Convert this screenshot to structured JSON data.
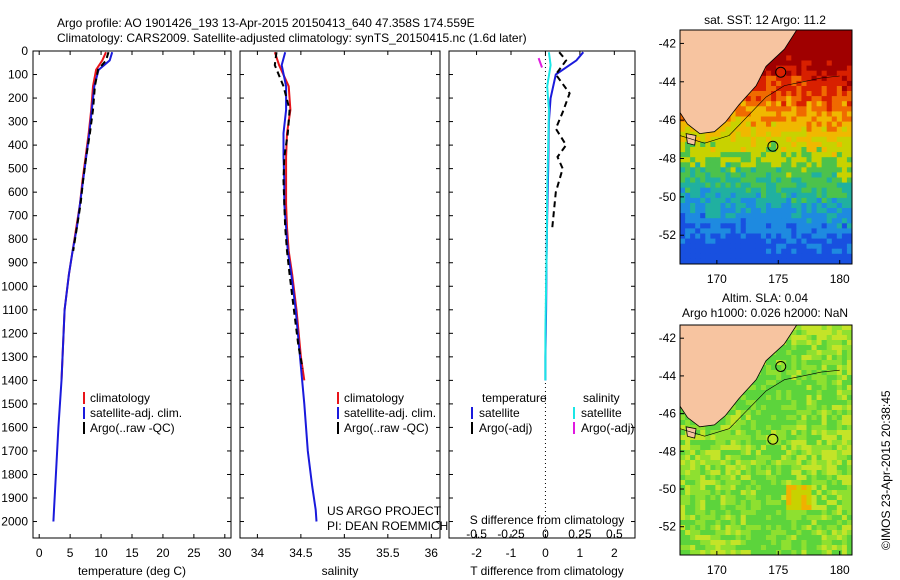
{
  "header": {
    "line1": "Argo profile: AO 1901426_193 13-Apr-2015 20150413_640 47.358S 174.559E",
    "line2": "Climatology: CARS2009. Satellite-adjusted climatology: synTS_20150415.nc (1.6d later)"
  },
  "credit": "©IMOS 23-Apr-2015 20:38:45",
  "colors": {
    "climatology": "#e8141a",
    "satellite": "#1a1adc",
    "argo": "#000000",
    "sat_salinity": "#1ae6e6",
    "argo_salinity": "#e01ae0",
    "land": "#f7c4a0"
  },
  "chart_data": [
    {
      "type": "line",
      "panel": "temperature",
      "xlabel": "temperature (deg C)",
      "xlim": [
        -1,
        31
      ],
      "xticks": [
        0,
        5,
        10,
        15,
        20,
        25,
        30
      ],
      "ylim": [
        0,
        2070
      ],
      "yticks": [
        0,
        100,
        200,
        300,
        400,
        500,
        600,
        700,
        800,
        900,
        1000,
        1100,
        1200,
        1300,
        1400,
        1500,
        1600,
        1700,
        1800,
        1900,
        2000
      ],
      "legend": [
        "climatology",
        "satellite-adj. clim.",
        "Argo(..raw -QC)"
      ],
      "series": [
        {
          "name": "climatology",
          "color": "climatology",
          "x": [
            10.8,
            10.2,
            9.2,
            8.7,
            8.4,
            8.0,
            7.5,
            7.0,
            6.6,
            6.0,
            5.4,
            4.8,
            4.1,
            3.6
          ],
          "y": [
            5,
            40,
            80,
            150,
            250,
            350,
            450,
            550,
            650,
            750,
            850,
            950,
            1100,
            1400
          ]
        },
        {
          "name": "satellite-adj. clim.",
          "color": "satellite",
          "x": [
            11.8,
            11.4,
            9.6,
            8.9,
            8.5,
            8.1,
            7.6,
            7.1,
            6.6,
            6.1,
            5.4,
            4.8,
            4.1,
            3.6,
            3.1,
            2.7,
            2.4,
            2.3
          ],
          "y": [
            5,
            40,
            80,
            150,
            250,
            350,
            450,
            550,
            650,
            750,
            850,
            950,
            1100,
            1400,
            1600,
            1800,
            1950,
            2000
          ]
        },
        {
          "name": "Argo(..raw -QC)",
          "color": "argo",
          "dashed": true,
          "x": [
            11.2,
            10.8,
            9.5,
            9.0,
            8.7,
            8.2,
            7.6,
            7.1,
            6.7,
            6.1,
            5.5
          ],
          "y": [
            5,
            40,
            80,
            150,
            250,
            350,
            450,
            550,
            650,
            750,
            850
          ]
        }
      ]
    },
    {
      "type": "line",
      "panel": "salinity",
      "xlabel": "salinity",
      "xlim": [
        33.8,
        36.1
      ],
      "xticks": [
        34,
        34.5,
        35,
        35.5,
        36
      ],
      "ylim": [
        0,
        2070
      ],
      "legend": [
        "climatology",
        "satellite-adj. clim.",
        "Argo(..raw -QC)"
      ],
      "annotation": [
        "US ARGO PROJECT",
        "PI: DEAN ROEMMICH"
      ],
      "series": [
        {
          "name": "climatology",
          "color": "climatology",
          "x": [
            34.2,
            34.25,
            34.36,
            34.38,
            34.34,
            34.33,
            34.33,
            34.33,
            34.34,
            34.36,
            34.4,
            34.45,
            34.5,
            34.54
          ],
          "y": [
            5,
            60,
            150,
            250,
            350,
            450,
            550,
            650,
            750,
            850,
            950,
            1100,
            1300,
            1400
          ]
        },
        {
          "name": "satellite-adj. clim.",
          "color": "satellite",
          "x": [
            34.32,
            34.28,
            34.33,
            34.33,
            34.3,
            34.3,
            34.31,
            34.31,
            34.33,
            34.35,
            34.39,
            34.44,
            34.49,
            34.54,
            34.58,
            34.63,
            34.67,
            34.68
          ],
          "y": [
            5,
            60,
            150,
            250,
            350,
            450,
            550,
            650,
            750,
            850,
            950,
            1100,
            1300,
            1500,
            1700,
            1850,
            1950,
            2000
          ]
        },
        {
          "name": "Argo(..raw -QC)",
          "color": "argo",
          "dashed": true,
          "x": [
            34.22,
            34.2,
            34.3,
            34.37,
            34.35,
            34.31,
            34.3,
            34.31,
            34.32,
            34.34,
            34.37,
            34.42,
            34.47,
            34.52
          ],
          "y": [
            5,
            60,
            150,
            250,
            350,
            450,
            550,
            650,
            750,
            850,
            950,
            1100,
            1250,
            1350
          ]
        }
      ]
    },
    {
      "type": "line",
      "panel": "differences",
      "xlabel": "T difference from climatology",
      "xlabel_top": "S difference from climatology",
      "xlim": [
        -2.8,
        2.6
      ],
      "xticks": [
        -2,
        -1,
        0,
        1,
        2
      ],
      "xticks_top_labels": [
        "-0.5",
        "-0.25",
        "0",
        "0.25",
        "0.5"
      ],
      "xticks_top_pos": [
        -2,
        -1,
        0,
        1,
        2
      ],
      "ylim": [
        0,
        2070
      ],
      "legend": {
        "temperature": [
          "satellite",
          "Argo(-adj)"
        ],
        "salinity": [
          "satellite",
          "Argo(-adj)"
        ]
      },
      "series": [
        {
          "name": "temperature satellite",
          "color": "satellite",
          "x": [
            1.1,
            0.9,
            0.3,
            0.15,
            0.1,
            0.08,
            0.05,
            0.03,
            0.02,
            0.0,
            0.0
          ],
          "y": [
            5,
            40,
            100,
            200,
            300,
            500,
            700,
            900,
            1100,
            1300,
            1400
          ]
        },
        {
          "name": "temperature Argo(-adj)",
          "color": "argo",
          "dashed": true,
          "x": [
            0.4,
            0.6,
            0.3,
            0.7,
            0.5,
            0.3,
            0.6,
            0.35,
            0.5,
            0.3,
            0.2
          ],
          "y": [
            5,
            40,
            100,
            180,
            260,
            330,
            400,
            450,
            500,
            600,
            750
          ]
        },
        {
          "name": "salinity satellite",
          "color": "sat_salinity",
          "x": [
            0.1,
            0.15,
            0.05,
            0.1,
            0.08,
            0.05,
            0.04,
            0.02,
            0.0,
            0.0
          ],
          "y": [
            5,
            60,
            150,
            250,
            400,
            600,
            800,
            1000,
            1200,
            1400
          ]
        },
        {
          "name": "salinity Argo(-adj)",
          "color": "argo_salinity",
          "x": [
            -0.2,
            -0.15,
            -0.1
          ],
          "y": [
            30,
            50,
            70
          ]
        }
      ]
    },
    {
      "type": "heatmap",
      "panel": "map-sst",
      "title": "sat. SST: 12 Argo: 11.2",
      "xticks": [
        170,
        175,
        180
      ],
      "yticks": [
        -42,
        -44,
        -46,
        -48,
        -50,
        -52
      ],
      "xlim": [
        167,
        181
      ],
      "ylim": [
        -53.5,
        -41.3
      ]
    },
    {
      "type": "heatmap",
      "panel": "map-sla",
      "title": "Altim. SLA: 0.04",
      "subtitle": "Argo h1000: 0.026 h2000: NaN",
      "xticks": [
        170,
        175,
        180
      ],
      "yticks": [
        -42,
        -44,
        -46,
        -48,
        -50,
        -52
      ],
      "xlim": [
        167,
        181
      ],
      "ylim": [
        -53.5,
        -41.3
      ]
    }
  ]
}
